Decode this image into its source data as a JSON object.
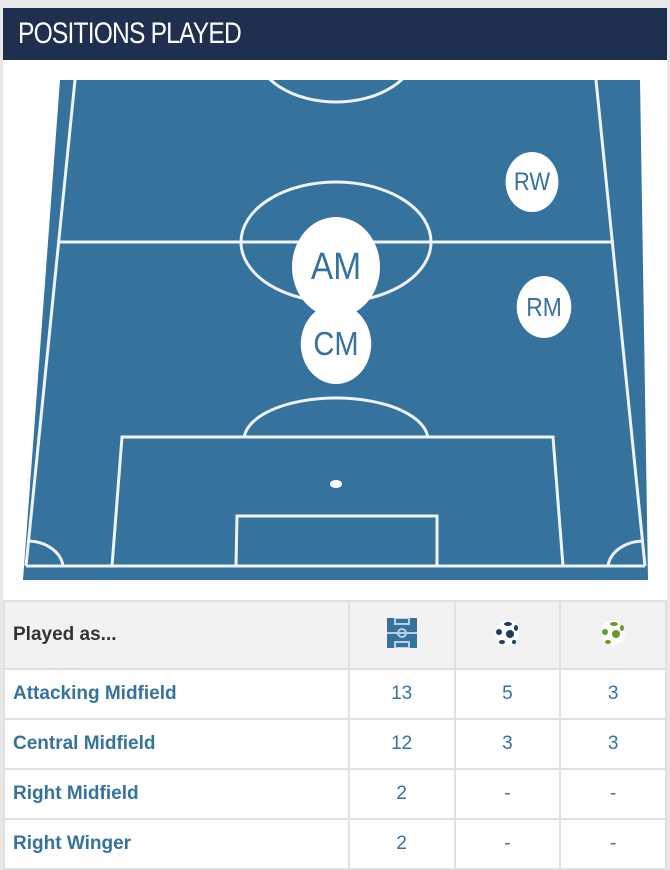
{
  "header": {
    "title": "POSITIONS PLAYED"
  },
  "colors": {
    "header_bg": "#1f2f4f",
    "pitch": "#36729e",
    "link": "#36729e"
  },
  "pitch": {
    "positions": [
      {
        "code": "RW",
        "name": "Right Winger"
      },
      {
        "code": "AM",
        "name": "Attacking Midfield"
      },
      {
        "code": "RM",
        "name": "Right Midfield"
      },
      {
        "code": "CM",
        "name": "Central Midfield"
      }
    ]
  },
  "table": {
    "header": {
      "label": "Played as...",
      "icons": [
        "pitch-icon",
        "ball-dark-icon",
        "ball-green-icon"
      ]
    },
    "rows": [
      {
        "position": "Attacking Midfield",
        "values": [
          "13",
          "5",
          "3"
        ]
      },
      {
        "position": "Central Midfield",
        "values": [
          "12",
          "3",
          "3"
        ]
      },
      {
        "position": "Right Midfield",
        "values": [
          "2",
          "-",
          "-"
        ]
      },
      {
        "position": "Right Winger",
        "values": [
          "2",
          "-",
          "-"
        ]
      }
    ]
  }
}
